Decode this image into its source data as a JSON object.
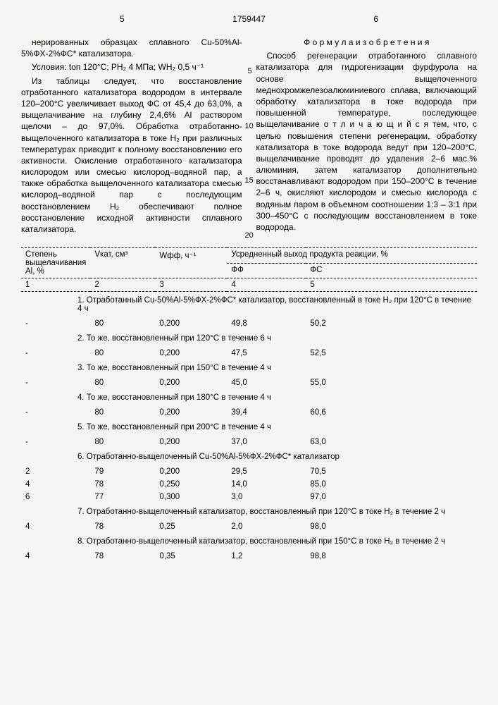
{
  "page_left": "5",
  "pub_number": "1759447",
  "page_right": "6",
  "left_col": {
    "p1": "нерированных образцах сплавного Cu-50%Al-5%ФХ-2%ФС* катализатора.",
    "p2": "Условия: tоп 120°C; PH₂ 4 МПа; WH₂ 0,5 ч⁻¹",
    "p3": "Из таблицы следует, что восстановление отработанного катализатора водородом в интервале 120–200°C увеличивает выход ФС от 45,4 до 63,0%, а выщелачивание на глубину 2,4,6% Al раствором щелочи – до 97,0%. Обработка отработанно-выщелоченного катализатора в токе H₂ при различных температурах приводит к полному восстановлению его активности. Окисление отработанного катализатора кислородом или смесью кислород–водяной пар, а также обработка выщелоченного катализатора смесью кислород–водяной пар с последующим восстановлением H₂ обеспечивают полное восстановление исходной активности сплавного катализатора."
  },
  "right_col": {
    "title": "Ф о р м у л а  и з о б р е т е н и я",
    "p1": "Способ регенерации отработанного сплавного катализатора для гидрогенизации фурфурола на основе выщелоченного меднохромжелезоалюминиевого сплава, включающий обработку катализатора в токе водорода при повышенной температуре, последующее выщелачивание  о т л и ч а ю щ и й с я  тем, что, с целью повышения степени регенерации, обработку катализатора в токе водорода ведут при 120–200°C, выщелачивание проводят до удаления 2–6 мас.% алюминия, затем катализатор дополнительно восстанавливают водородом при 150–200°C в течение 2–6 ч, окисляют кислородом и смесью кислорода с водяным паром в объемном соотношении 1:3 – 3:1 при 300–450°C с последующим восстановлением в токе водорода.",
    "ln5": "5",
    "ln10": "10",
    "ln15": "15",
    "ln20": "20"
  },
  "table": {
    "headers": {
      "c1": "Степень выщелачивания Al, %",
      "c2": "Vкат, см³",
      "c3": "Wфф, ч⁻¹",
      "c45": "Усредненный выход продукта реакции, %",
      "c4": "ФФ",
      "c5": "ФС"
    },
    "nums": {
      "n1": "1",
      "n2": "2",
      "n3": "3",
      "n4": "4",
      "n5": "5"
    },
    "sections": [
      {
        "title": "1. Отработанный Cu-50%Al-5%ФХ-2%ФС* катализатор, восстановленный в токе H₂ при 120°C в течение 4 ч",
        "rows": [
          {
            "c1": "-",
            "c2": "80",
            "c3": "0,200",
            "c4": "49,8",
            "c5": "50,2"
          }
        ]
      },
      {
        "title": "2. То же, восстановленный при 120°C в течение 6 ч",
        "rows": [
          {
            "c1": "-",
            "c2": "80",
            "c3": "0,200",
            "c4": "47,5",
            "c5": "52,5"
          }
        ]
      },
      {
        "title": "3. То же, восстановленный при 150°C в течение 4 ч",
        "rows": [
          {
            "c1": "-",
            "c2": "80",
            "c3": "0,200",
            "c4": "45,0",
            "c5": "55,0"
          }
        ]
      },
      {
        "title": "4. То же, восстановленный при 180°C в течение 4 ч",
        "rows": [
          {
            "c1": "-",
            "c2": "80",
            "c3": "0,200",
            "c4": "39,4",
            "c5": "60,6"
          }
        ]
      },
      {
        "title": "5. То же, восстановленный при 200°C в течение 4 ч",
        "rows": [
          {
            "c1": "-",
            "c2": "80",
            "c3": "0,200",
            "c4": "37,0",
            "c5": "63,0"
          }
        ]
      },
      {
        "title": "6. Отработанно-выщелоченный Cu-50%Al-5%ФХ-2%ФС* катализатор",
        "rows": [
          {
            "c1": "2",
            "c2": "79",
            "c3": "0,200",
            "c4": "29,5",
            "c5": "70,5"
          },
          {
            "c1": "4",
            "c2": "78",
            "c3": "0,250",
            "c4": "14,0",
            "c5": "85,0"
          },
          {
            "c1": "6",
            "c2": "77",
            "c3": "0,300",
            "c4": "3,0",
            "c5": "97,0"
          }
        ]
      },
      {
        "title": "7. Отработанно-выщелоченный катализатор, восстановленный при 120°C в токе H₂ в течение 2 ч",
        "rows": [
          {
            "c1": "4",
            "c2": "78",
            "c3": "0,25",
            "c4": "2,0",
            "c5": "98,0"
          }
        ]
      },
      {
        "title": "8. Отработанно-выщелоченный катализатор, восстановленный при 150°C в токе H₂ в течение 2 ч",
        "rows": [
          {
            "c1": "4",
            "c2": "78",
            "c3": "0,35",
            "c4": "1,2",
            "c5": "98,8"
          }
        ]
      }
    ]
  }
}
